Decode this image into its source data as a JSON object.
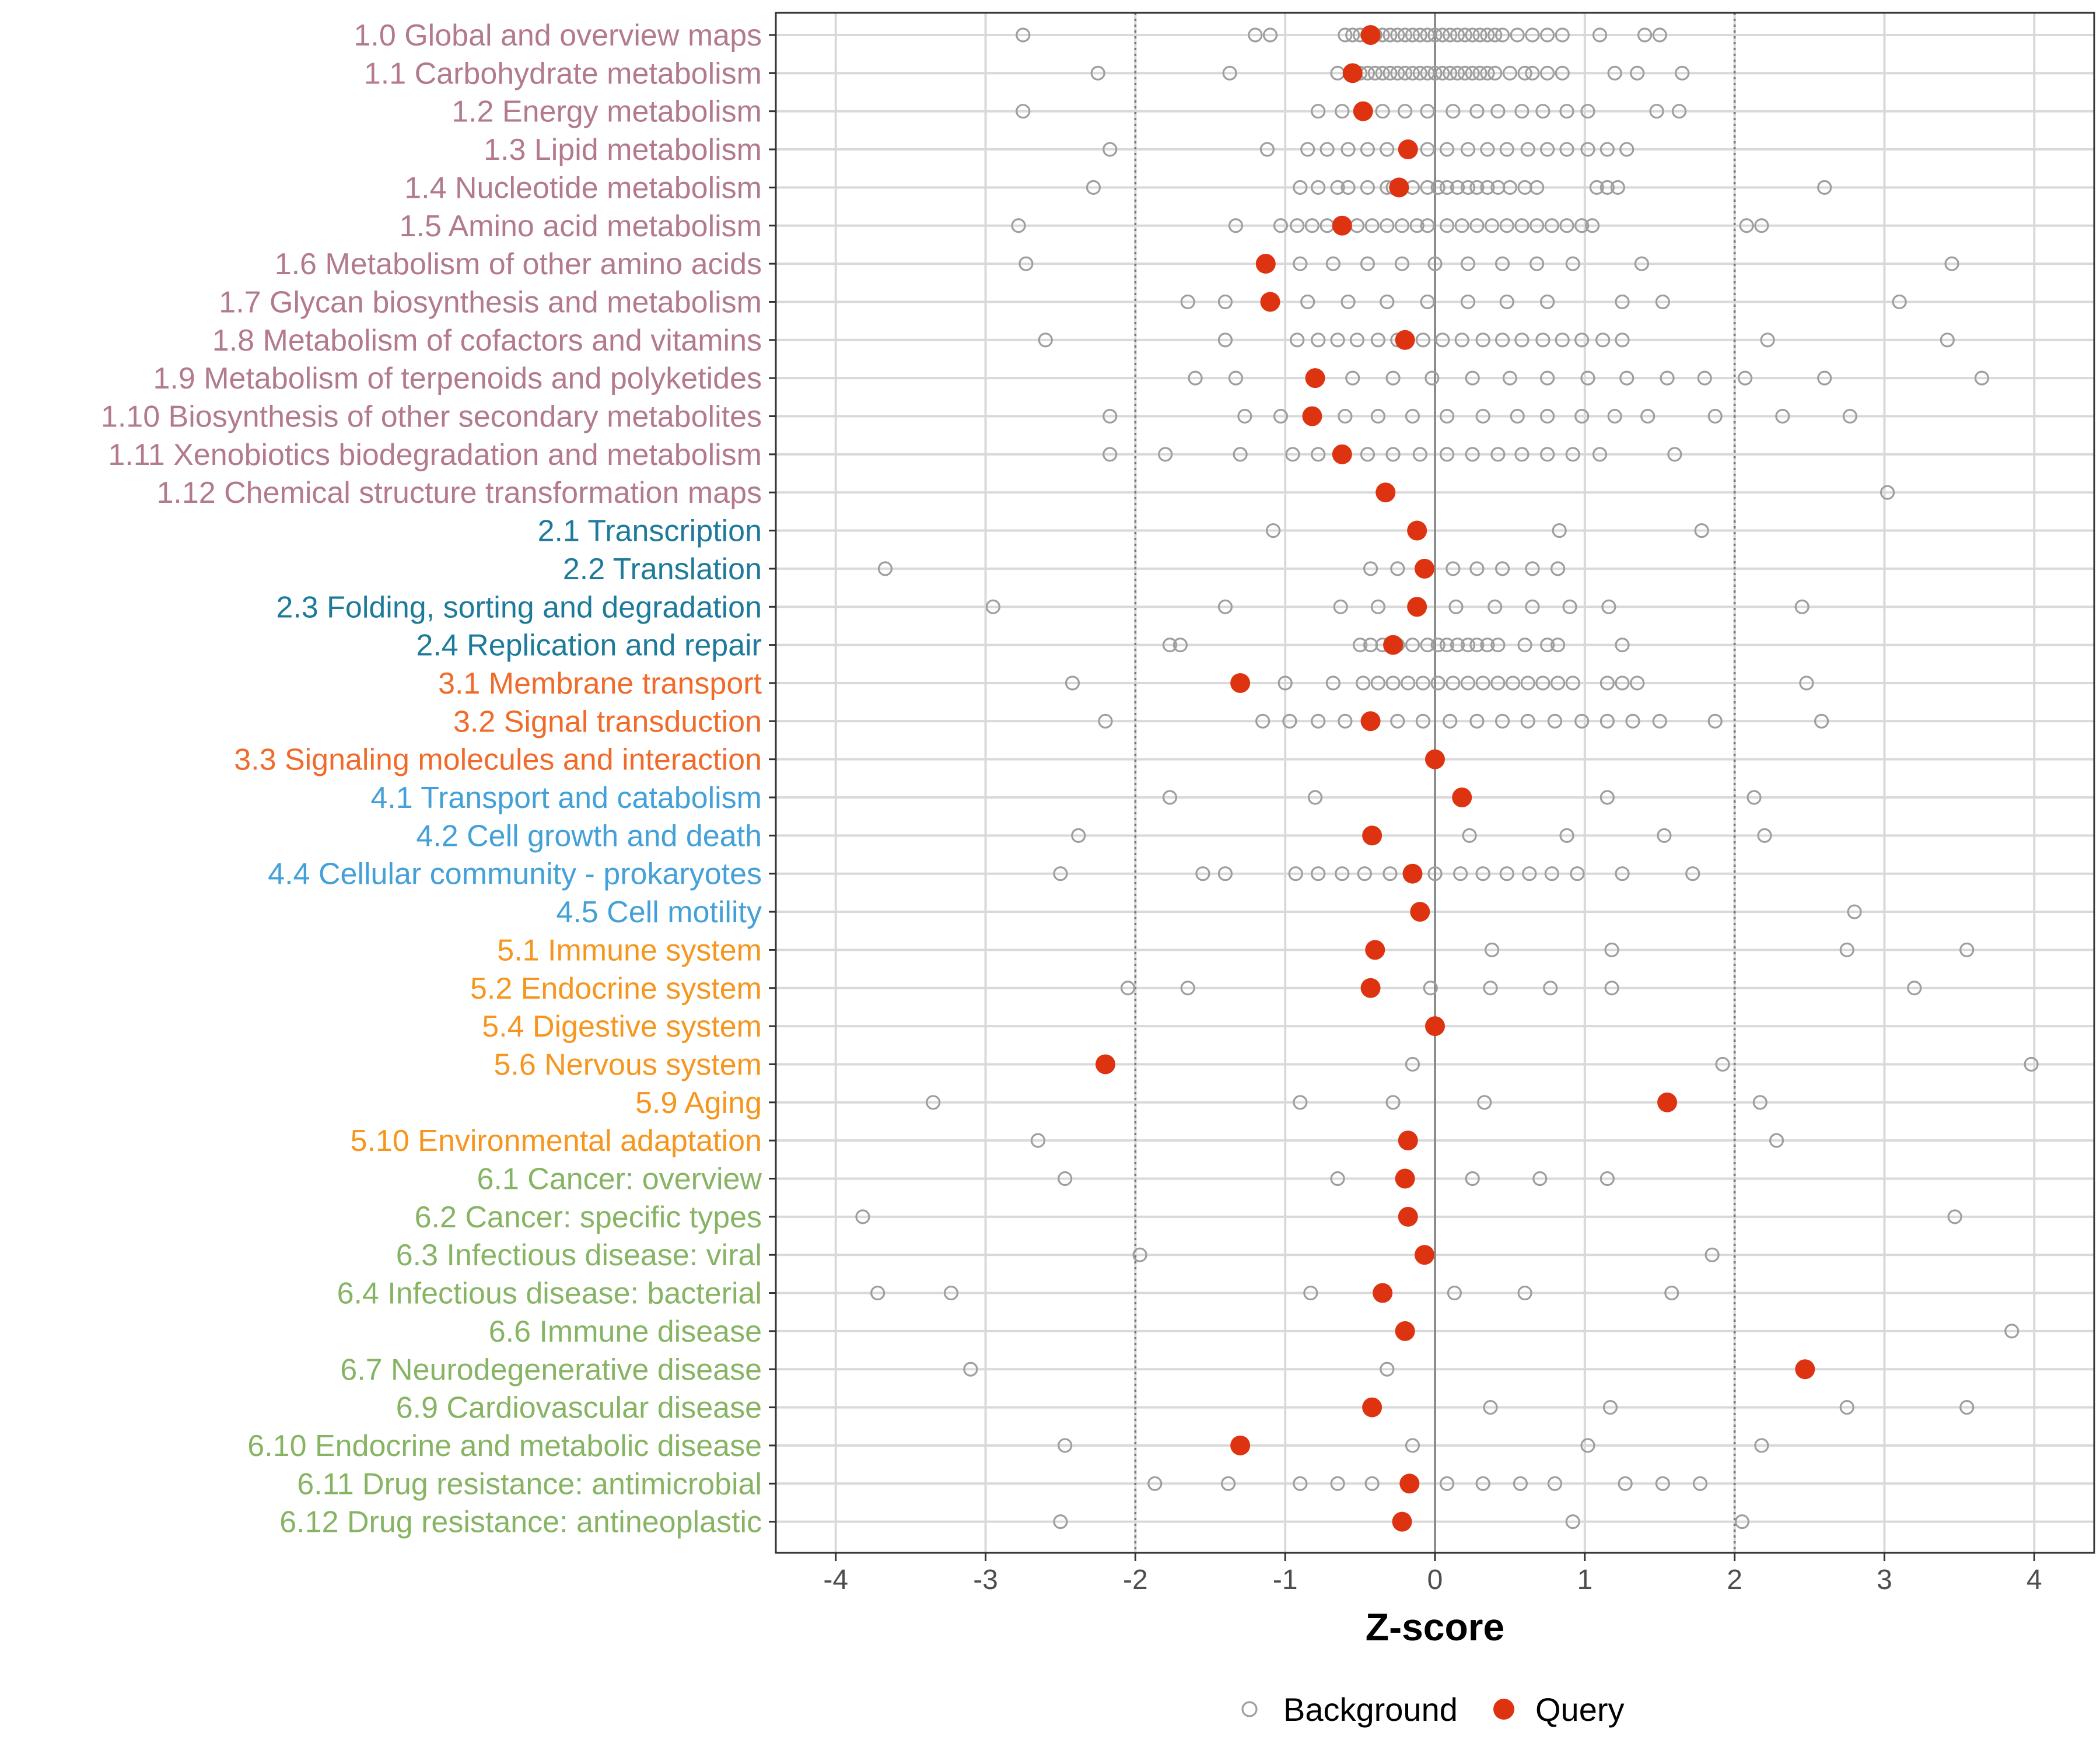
{
  "chart_data": {
    "type": "scatter",
    "title": "",
    "xlabel": "Z-score",
    "ylabel": "",
    "xlim": [
      -4.4,
      4.4
    ],
    "x_ticks": [
      -4,
      -3,
      -2,
      -1,
      0,
      1,
      2,
      3,
      4
    ],
    "x_tick_labels": [
      "-4",
      "-3",
      "-2",
      "-1",
      "0",
      "1",
      "2",
      "3",
      "4"
    ],
    "reference_lines": [
      -2,
      2
    ],
    "zero_line": 0,
    "legend": [
      {
        "name": "Background",
        "key": "background",
        "color": "#9e9e9e",
        "marker": "open-circle"
      },
      {
        "name": "Query",
        "key": "query",
        "color": "#dd3311",
        "marker": "filled-circle"
      }
    ],
    "legend_position": "bottom",
    "groups": {
      "1": "#b27a8c",
      "2": "#1e7a9a",
      "3": "#f06a2a",
      "4": "#44a0d8",
      "5": "#f6961e",
      "6": "#86b463"
    },
    "categories": [
      {
        "label": "1.0 Global and overview maps",
        "group": "1",
        "query": -0.43,
        "background": [
          -2.75,
          -1.2,
          -1.1,
          -0.6,
          -0.55,
          -0.5,
          -0.45,
          -0.4,
          -0.35,
          -0.3,
          -0.25,
          -0.2,
          -0.15,
          -0.1,
          -0.05,
          0.0,
          0.05,
          0.1,
          0.15,
          0.2,
          0.25,
          0.3,
          0.35,
          0.4,
          0.45,
          0.55,
          0.65,
          0.75,
          0.85,
          1.1,
          1.4,
          1.5
        ]
      },
      {
        "label": "1.1 Carbohydrate metabolism",
        "group": "1",
        "query": -0.55,
        "background": [
          -2.25,
          -1.37,
          -0.65,
          -0.55,
          -0.5,
          -0.45,
          -0.4,
          -0.35,
          -0.3,
          -0.25,
          -0.2,
          -0.15,
          -0.1,
          -0.05,
          0.0,
          0.05,
          0.1,
          0.15,
          0.2,
          0.25,
          0.3,
          0.35,
          0.4,
          0.5,
          0.6,
          0.65,
          0.75,
          0.85,
          1.2,
          1.35,
          1.65
        ]
      },
      {
        "label": "1.2 Energy metabolism",
        "group": "1",
        "query": -0.48,
        "background": [
          -2.75,
          -0.78,
          -0.62,
          -0.35,
          -0.2,
          -0.05,
          0.12,
          0.28,
          0.42,
          0.58,
          0.72,
          0.88,
          1.02,
          1.48,
          1.63
        ]
      },
      {
        "label": "1.3 Lipid metabolism",
        "group": "1",
        "query": -0.18,
        "background": [
          -2.17,
          -1.12,
          -0.85,
          -0.72,
          -0.58,
          -0.45,
          -0.32,
          -0.05,
          0.08,
          0.22,
          0.35,
          0.48,
          0.62,
          0.75,
          0.88,
          1.02,
          1.15,
          1.28
        ]
      },
      {
        "label": "1.4 Nucleotide metabolism",
        "group": "1",
        "query": -0.24,
        "background": [
          -2.28,
          -0.9,
          -0.78,
          -0.65,
          -0.58,
          -0.45,
          -0.32,
          -0.28,
          -0.15,
          -0.05,
          0.02,
          0.08,
          0.15,
          0.22,
          0.28,
          0.35,
          0.42,
          0.5,
          0.6,
          0.68,
          1.08,
          1.15,
          1.22,
          2.6
        ]
      },
      {
        "label": "1.5 Amino acid metabolism",
        "group": "1",
        "query": -0.62,
        "background": [
          -2.78,
          -1.33,
          -1.03,
          -0.92,
          -0.82,
          -0.72,
          -0.52,
          -0.42,
          -0.32,
          -0.22,
          -0.12,
          -0.05,
          0.08,
          0.18,
          0.28,
          0.38,
          0.48,
          0.58,
          0.68,
          0.78,
          0.88,
          0.98,
          1.05,
          2.08,
          2.18
        ]
      },
      {
        "label": "1.6 Metabolism of other amino acids",
        "group": "1",
        "query": -1.13,
        "background": [
          -2.73,
          -0.9,
          -0.68,
          -0.45,
          -0.22,
          0.0,
          0.22,
          0.45,
          0.68,
          0.92,
          1.38,
          3.45
        ]
      },
      {
        "label": "1.7 Glycan biosynthesis and metabolism",
        "group": "1",
        "query": -1.1,
        "background": [
          -1.65,
          -1.4,
          -0.85,
          -0.58,
          -0.32,
          -0.05,
          0.22,
          0.48,
          0.75,
          1.25,
          1.52,
          3.1
        ]
      },
      {
        "label": "1.8 Metabolism of cofactors and vitamins",
        "group": "1",
        "query": -0.2,
        "background": [
          -2.6,
          -1.4,
          -0.92,
          -0.78,
          -0.65,
          -0.52,
          -0.38,
          -0.25,
          -0.08,
          0.05,
          0.18,
          0.32,
          0.45,
          0.58,
          0.72,
          0.85,
          0.98,
          1.12,
          1.25,
          2.22,
          3.42
        ]
      },
      {
        "label": "1.9 Metabolism of terpenoids and polyketides",
        "group": "1",
        "query": -0.8,
        "background": [
          -1.6,
          -1.33,
          -0.55,
          -0.28,
          -0.02,
          0.25,
          0.5,
          0.75,
          1.02,
          1.28,
          1.55,
          1.8,
          2.07,
          2.6,
          3.65
        ]
      },
      {
        "label": "1.10 Biosynthesis of other secondary metabolites",
        "group": "1",
        "query": -0.82,
        "background": [
          -2.17,
          -1.27,
          -1.03,
          -0.6,
          -0.38,
          -0.15,
          0.08,
          0.32,
          0.55,
          0.75,
          0.98,
          1.2,
          1.42,
          1.87,
          2.32,
          2.77
        ]
      },
      {
        "label": "1.11 Xenobiotics biodegradation and metabolism",
        "group": "1",
        "query": -0.62,
        "background": [
          -2.17,
          -1.8,
          -1.3,
          -0.95,
          -0.78,
          -0.45,
          -0.28,
          -0.1,
          0.08,
          0.25,
          0.42,
          0.58,
          0.75,
          0.92,
          1.1,
          1.6
        ]
      },
      {
        "label": "1.12 Chemical structure transformation maps",
        "group": "1",
        "query": -0.33,
        "background": [
          3.02
        ]
      },
      {
        "label": "2.1 Transcription",
        "group": "2",
        "query": -0.12,
        "background": [
          -1.08,
          0.83,
          1.78
        ]
      },
      {
        "label": "2.2 Translation",
        "group": "2",
        "query": -0.07,
        "background": [
          -3.67,
          -0.43,
          -0.25,
          0.12,
          0.28,
          0.45,
          0.65,
          0.82
        ]
      },
      {
        "label": "2.3 Folding, sorting and degradation",
        "group": "2",
        "query": -0.12,
        "background": [
          -2.95,
          -1.4,
          -0.63,
          -0.38,
          0.14,
          0.4,
          0.65,
          0.9,
          1.16,
          2.45
        ]
      },
      {
        "label": "2.4 Replication and repair",
        "group": "2",
        "query": -0.28,
        "background": [
          -1.77,
          -1.7,
          -0.5,
          -0.43,
          -0.35,
          -0.25,
          -0.15,
          -0.05,
          0.02,
          0.08,
          0.15,
          0.22,
          0.28,
          0.35,
          0.42,
          0.6,
          0.75,
          0.82,
          1.25
        ]
      },
      {
        "label": "3.1 Membrane transport",
        "group": "3",
        "query": -1.3,
        "background": [
          -2.42,
          -1.0,
          -0.68,
          -0.48,
          -0.38,
          -0.28,
          -0.18,
          -0.08,
          0.02,
          0.12,
          0.22,
          0.32,
          0.42,
          0.52,
          0.62,
          0.72,
          0.82,
          0.92,
          1.15,
          1.25,
          1.35,
          2.48
        ]
      },
      {
        "label": "3.2 Signal transduction",
        "group": "3",
        "query": -0.43,
        "background": [
          -2.2,
          -1.15,
          -0.97,
          -0.78,
          -0.6,
          -0.25,
          -0.08,
          0.1,
          0.28,
          0.45,
          0.62,
          0.8,
          0.98,
          1.15,
          1.32,
          1.5,
          1.87,
          2.58
        ]
      },
      {
        "label": "3.3 Signaling molecules and interaction",
        "group": "3",
        "query": 0.0,
        "background": []
      },
      {
        "label": "4.1 Transport and catabolism",
        "group": "4",
        "query": 0.18,
        "background": [
          -1.77,
          -0.8,
          1.15,
          2.13
        ]
      },
      {
        "label": "4.2 Cell growth and death",
        "group": "4",
        "query": -0.42,
        "background": [
          -2.38,
          0.23,
          0.88,
          1.53,
          2.2
        ]
      },
      {
        "label": "4.4 Cellular community - prokaryotes",
        "group": "4",
        "query": -0.15,
        "background": [
          -2.5,
          -1.55,
          -1.4,
          -0.93,
          -0.78,
          -0.62,
          -0.47,
          -0.3,
          0.0,
          0.17,
          0.32,
          0.48,
          0.63,
          0.78,
          0.95,
          1.25,
          1.72
        ]
      },
      {
        "label": "4.5 Cell motility",
        "group": "4",
        "query": -0.1,
        "background": [
          2.8
        ]
      },
      {
        "label": "5.1 Immune system",
        "group": "5",
        "query": -0.4,
        "background": [
          0.38,
          1.18,
          2.75,
          3.55
        ]
      },
      {
        "label": "5.2 Endocrine system",
        "group": "5",
        "query": -0.43,
        "background": [
          -2.05,
          -1.65,
          -0.03,
          0.37,
          0.77,
          1.18,
          3.2
        ]
      },
      {
        "label": "5.4 Digestive system",
        "group": "5",
        "query": 0.0,
        "background": []
      },
      {
        "label": "5.6 Nervous system",
        "group": "5",
        "query": -2.2,
        "background": [
          -0.15,
          1.92,
          3.98
        ]
      },
      {
        "label": "5.9 Aging",
        "group": "5",
        "query": 1.55,
        "background": [
          -3.35,
          -0.9,
          -0.28,
          0.33,
          2.17
        ]
      },
      {
        "label": "5.10 Environmental adaptation",
        "group": "5",
        "query": -0.18,
        "background": [
          -2.65,
          2.28
        ]
      },
      {
        "label": "6.1 Cancer: overview",
        "group": "6",
        "query": -0.2,
        "background": [
          -2.47,
          -0.65,
          0.25,
          0.7,
          1.15
        ]
      },
      {
        "label": "6.2 Cancer: specific types",
        "group": "6",
        "query": -0.18,
        "background": [
          -3.82,
          3.47
        ]
      },
      {
        "label": "6.3 Infectious disease: viral",
        "group": "6",
        "query": -0.07,
        "background": [
          -1.97,
          1.85
        ]
      },
      {
        "label": "6.4 Infectious disease: bacterial",
        "group": "6",
        "query": -0.35,
        "background": [
          -3.72,
          -3.23,
          -0.83,
          0.13,
          0.6,
          1.58
        ]
      },
      {
        "label": "6.6 Immune disease",
        "group": "6",
        "query": -0.2,
        "background": [
          3.85
        ]
      },
      {
        "label": "6.7 Neurodegenerative disease",
        "group": "6",
        "query": 2.47,
        "background": [
          -3.1,
          -0.32
        ]
      },
      {
        "label": "6.9 Cardiovascular disease",
        "group": "6",
        "query": -0.42,
        "background": [
          0.37,
          1.17,
          2.75,
          3.55
        ]
      },
      {
        "label": "6.10 Endocrine and metabolic disease",
        "group": "6",
        "query": -1.3,
        "background": [
          -2.47,
          -0.15,
          1.02,
          2.18
        ]
      },
      {
        "label": "6.11 Drug resistance: antimicrobial",
        "group": "6",
        "query": -0.17,
        "background": [
          -1.87,
          -1.38,
          -0.9,
          -0.65,
          -0.42,
          0.08,
          0.32,
          0.57,
          0.8,
          1.27,
          1.52,
          1.77
        ]
      },
      {
        "label": "6.12 Drug resistance: antineoplastic",
        "group": "6",
        "query": -0.22,
        "background": [
          -2.5,
          0.92,
          2.05
        ]
      }
    ]
  }
}
